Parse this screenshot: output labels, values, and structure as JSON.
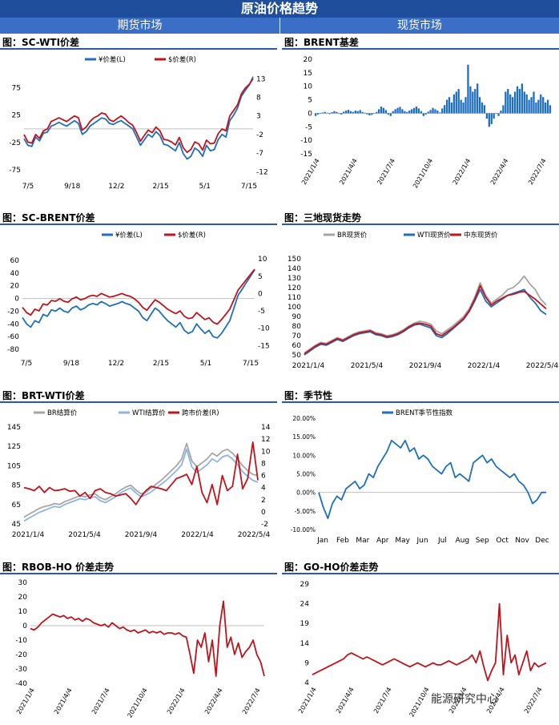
{
  "banner": "原油价格趋势",
  "columns": {
    "left": "期货市场",
    "right": "现货市场"
  },
  "watermark": "能源研究中心",
  "colors": {
    "blue": "#1f6fbf",
    "red": "#c0141c",
    "gray": "#a6a6a6",
    "lightblue": "#8db4e2"
  },
  "chart_data": [
    {
      "id": "c1",
      "type": "line",
      "title": "图：SC-WTI价差",
      "x_ticks": [
        "7/5",
        "9/18",
        "12/2",
        "2/15",
        "5/1",
        "7/15"
      ],
      "y_left": [
        -75,
        -25,
        25,
        75
      ],
      "y_left_range": [
        -85,
        105
      ],
      "y_right": [
        -12,
        -7,
        -2,
        3,
        8,
        13
      ],
      "y_right_range": [
        -13,
        15
      ],
      "series": [
        {
          "name": "¥价差(L)",
          "color": "#1f6fbf",
          "axis": "left",
          "values": [
            -18,
            -30,
            -32,
            -15,
            -22,
            -8,
            -6,
            5,
            8,
            12,
            8,
            5,
            10,
            15,
            10,
            -10,
            -5,
            5,
            10,
            15,
            20,
            18,
            10,
            8,
            12,
            15,
            10,
            5,
            0,
            -15,
            -30,
            -20,
            -10,
            -15,
            -5,
            -12,
            -28,
            -30,
            -35,
            -40,
            -25,
            -45,
            -55,
            -50,
            -35,
            -40,
            -50,
            -30,
            -40,
            -38,
            -20,
            -10,
            -15,
            15,
            25,
            38,
            60,
            70,
            80,
            95
          ]
        },
        {
          "name": "$价差(R)",
          "color": "#c0141c",
          "axis": "right",
          "values": [
            -2,
            -4,
            -4.3,
            -2,
            -3,
            -1,
            -0.5,
            1.5,
            2,
            2.5,
            2,
            1.5,
            2.3,
            3,
            2.5,
            -0.8,
            0,
            1.5,
            2.5,
            3,
            3.8,
            3.5,
            2,
            1.5,
            2.3,
            3,
            2.2,
            1.2,
            0.5,
            -1.5,
            -3.8,
            -2.2,
            -0.8,
            -1.5,
            0,
            -1,
            -3.3,
            -3.5,
            -4,
            -4.8,
            -2.8,
            -5.5,
            -6.8,
            -6,
            -4,
            -4.5,
            -6.2,
            -3.5,
            -4.5,
            -4.3,
            -1.8,
            -0.5,
            -1,
            3,
            4.5,
            6,
            9,
            10.5,
            11.5,
            13
          ]
        }
      ]
    },
    {
      "id": "c2",
      "type": "bar",
      "title": "图：BRENT基差",
      "x_ticks": [
        "2021/1/4",
        "2021/4/4",
        "2021/7/4",
        "2021/10/4",
        "2022/1/4",
        "2022/4/4",
        "2022/7/4"
      ],
      "y_left": [
        -15,
        -10,
        -5,
        0,
        5,
        10,
        15,
        20
      ],
      "y_left_range": [
        -15,
        20
      ],
      "series": [
        {
          "name": "BRENT基差",
          "color": "#1f6fbf",
          "values": [
            -1,
            -0.5,
            0,
            0.3,
            0.5,
            0.2,
            -0.3,
            0.4,
            0.8,
            0.5,
            -0.2,
            -0.5,
            0.6,
            1,
            1.3,
            0.8,
            0.5,
            1,
            0.8,
            1.2,
            0.5,
            0.2,
            -0.4,
            -0.8,
            -0.6,
            -0.2,
            0.5,
            1.5,
            2.5,
            2,
            1.2,
            -0.5,
            -1,
            0.8,
            1.5,
            2,
            2.4,
            1.5,
            0.8,
            0.5,
            1,
            1.5,
            2,
            2.5,
            1.8,
            0.8,
            -1,
            -0.5,
            0.6,
            1.2,
            2,
            1.5,
            1,
            0.3,
            1.8,
            3,
            5,
            6,
            4,
            7,
            8,
            9,
            5,
            4,
            6,
            18,
            10,
            8,
            9,
            11,
            6,
            4,
            3,
            -2,
            -5,
            -4,
            -2,
            0,
            -1,
            1,
            3,
            8,
            9,
            7,
            6,
            8,
            10,
            9,
            11,
            8,
            7,
            5,
            6,
            8,
            4,
            5,
            7,
            6,
            4,
            5,
            3
          ]
        }
      ]
    },
    {
      "id": "c3",
      "type": "line",
      "title": "图：SC-BRENT价差",
      "x_ticks": [
        "7/5",
        "9/18",
        "12/2",
        "2/15",
        "5/1",
        "7/15"
      ],
      "y_left": [
        -80,
        -60,
        -40,
        -20,
        0,
        20,
        40,
        60
      ],
      "y_left_range": [
        -85,
        65
      ],
      "y_right": [
        -15,
        -10,
        -5,
        0,
        5,
        10
      ],
      "y_right_range": [
        -17,
        10.5
      ],
      "series": [
        {
          "name": "¥价差(L)",
          "color": "#1f6fbf",
          "axis": "left",
          "values": [
            -30,
            -40,
            -45,
            -35,
            -38,
            -25,
            -28,
            -18,
            -20,
            -15,
            -20,
            -22,
            -15,
            -12,
            -18,
            -15,
            -10,
            -8,
            -10,
            -5,
            -8,
            -12,
            -10,
            -8,
            -5,
            -8,
            -10,
            -15,
            -20,
            -30,
            -35,
            -25,
            -15,
            -20,
            -28,
            -35,
            -40,
            -45,
            -38,
            -50,
            -55,
            -52,
            -40,
            -48,
            -55,
            -50,
            -60,
            -62,
            -55,
            -45,
            -35,
            -15,
            5,
            15,
            25,
            35,
            45
          ]
        },
        {
          "name": "$价差(R)",
          "color": "#c0141c",
          "axis": "right",
          "values": [
            -4,
            -5.5,
            -6.2,
            -4.5,
            -5,
            -3,
            -3.3,
            -2,
            -2.2,
            -1.5,
            -2.2,
            -2.5,
            -1.5,
            -1,
            -1.8,
            -1.5,
            -0.8,
            -0.5,
            -0.8,
            0,
            -0.5,
            -1,
            -0.8,
            -0.4,
            0,
            -0.5,
            -0.8,
            -1.5,
            -2.5,
            -4,
            -4.8,
            -3.3,
            -1.8,
            -2.5,
            -3.5,
            -4.5,
            -5.2,
            -5.8,
            -5,
            -6.5,
            -7.2,
            -7,
            -5.5,
            -6.5,
            -7.5,
            -7,
            -8.3,
            -8.8,
            -7.5,
            -6,
            -4.5,
            -1.8,
            1,
            2.5,
            4,
            5.5,
            7
          ]
        }
      ]
    },
    {
      "id": "c4",
      "type": "line",
      "title": "图：三地现货走势",
      "x_ticks": [
        "2021/1/4",
        "2021/5/4",
        "2021/9/4",
        "2022/1/4",
        "2022/5/4"
      ],
      "y_left": [
        50,
        60,
        70,
        80,
        90,
        100,
        110,
        120,
        130,
        140,
        150
      ],
      "y_left_range": [
        50,
        150
      ],
      "series": [
        {
          "name": "BR现货价",
          "color": "#a6a6a6",
          "values": [
            52,
            56,
            60,
            63,
            62,
            65,
            68,
            66,
            69,
            72,
            74,
            75,
            76,
            73,
            72,
            70,
            71,
            73,
            76,
            80,
            83,
            85,
            84,
            82,
            75,
            72,
            76,
            80,
            85,
            90,
            98,
            110,
            125,
            112,
            104,
            108,
            112,
            118,
            120,
            125,
            132,
            124,
            118,
            108,
            102
          ]
        },
        {
          "name": "WTI现货价",
          "color": "#1f6fbf",
          "values": [
            50,
            54,
            58,
            61,
            60,
            63,
            66,
            64,
            67,
            70,
            72,
            73,
            74,
            71,
            70,
            68,
            69,
            71,
            74,
            78,
            81,
            82,
            80,
            78,
            70,
            68,
            72,
            77,
            82,
            87,
            95,
            106,
            118,
            106,
            100,
            104,
            108,
            112,
            114,
            116,
            118,
            110,
            104,
            96,
            92
          ]
        },
        {
          "name": "中东现货价",
          "color": "#c0141c",
          "values": [
            51,
            55,
            59,
            62,
            61,
            64,
            67,
            65,
            68,
            71,
            73,
            74,
            75,
            72,
            71,
            69,
            70,
            72,
            75,
            79,
            82,
            83,
            82,
            80,
            72,
            70,
            74,
            78,
            83,
            88,
            96,
            108,
            122,
            110,
            102,
            106,
            109,
            112,
            113,
            115,
            116,
            112,
            108,
            103,
            98
          ]
        }
      ]
    },
    {
      "id": "c5",
      "type": "line",
      "title": "图：BRT-WTI价差",
      "x_ticks": [
        "2021/1/4",
        "2021/5/4",
        "2021/9/4",
        "2022/1/4",
        "2022/5/4"
      ],
      "y_left": [
        45,
        65,
        85,
        105,
        125,
        145
      ],
      "y_left_range": [
        45,
        145
      ],
      "y_right": [
        -2,
        0,
        2,
        4,
        6,
        8,
        10,
        12,
        14
      ],
      "y_right_range": [
        -2,
        14
      ],
      "series": [
        {
          "name": "BR结算价",
          "color": "#a6a6a6",
          "axis": "left",
          "values": [
            52,
            55,
            58,
            61,
            63,
            64,
            66,
            65,
            68,
            70,
            72,
            74,
            73,
            75,
            76,
            72,
            70,
            73,
            76,
            80,
            83,
            85,
            80,
            76,
            78,
            82,
            86,
            90,
            95,
            100,
            105,
            112,
            128,
            110,
            104,
            108,
            112,
            118,
            115,
            120,
            122,
            118,
            112,
            105,
            100,
            96,
            95
          ]
        },
        {
          "name": "WTI结算价",
          "color": "#8db4e2",
          "axis": "left",
          "values": [
            48,
            51,
            54,
            57,
            59,
            61,
            63,
            62,
            65,
            67,
            69,
            71,
            70,
            72,
            73,
            69,
            67,
            70,
            73,
            77,
            80,
            82,
            77,
            73,
            75,
            78,
            82,
            86,
            90,
            95,
            100,
            106,
            122,
            104,
            98,
            102,
            106,
            112,
            109,
            114,
            116,
            112,
            106,
            99,
            94,
            90,
            88
          ]
        },
        {
          "name": "跨市价差(R)",
          "color": "#c0141c",
          "axis": "right",
          "values": [
            4,
            3.8,
            3.5,
            4.2,
            3.2,
            4,
            3.5,
            3.6,
            3.8,
            3.4,
            3.5,
            2.6,
            3.2,
            2.2,
            3.5,
            3.8,
            3.2,
            3,
            2.6,
            2.8,
            3,
            2.2,
            1.2,
            2.5,
            3.5,
            4.2,
            4,
            3.8,
            3.5,
            4.5,
            5.5,
            5.8,
            6.2,
            4.5,
            7.5,
            3.2,
            1.5,
            4.5,
            1.2,
            6,
            3.5,
            4.2,
            9.5,
            3.8,
            5.5,
            11.5,
            5.2
          ]
        }
      ]
    },
    {
      "id": "c6",
      "type": "line",
      "title": "图：季节性",
      "x_ticks": [
        "Jan",
        "Feb",
        "Mar",
        "Apr",
        "May",
        "Jun",
        "Jul",
        "Aug",
        "Sep",
        "Oct",
        "Nov",
        "Dec"
      ],
      "y_left": [
        "20.00%",
        "15.00%",
        "10.00%",
        "5.00%",
        "0.00%",
        "-5.00%",
        "-10.00%"
      ],
      "y_left_range": [
        -10,
        20
      ],
      "series": [
        {
          "name": "BRENT季节性指数",
          "color": "#1f6fbf",
          "values": [
            0,
            -4,
            -7,
            -3,
            -1,
            -2,
            1,
            2,
            3,
            1,
            2,
            5,
            4,
            7,
            9,
            11,
            14,
            13,
            12,
            14,
            11,
            12,
            9,
            10,
            9,
            7,
            6,
            5,
            7,
            8,
            4,
            5,
            4,
            3,
            8,
            9,
            10,
            8,
            9,
            7,
            6,
            5,
            4,
            5,
            3,
            2,
            0,
            -3,
            -2,
            0,
            0
          ]
        }
      ]
    },
    {
      "id": "c7",
      "type": "line",
      "title": "图：RBOB-HO 价差走势",
      "x_ticks": [
        "2021/1/4",
        "2021/4/4",
        "2021/7/4",
        "2021/10/4",
        "2022/1/4",
        "2022/4/4",
        "2022/7/4"
      ],
      "y_left": [
        -40,
        -30,
        -20,
        -10,
        0,
        10,
        20,
        30
      ],
      "y_left_range": [
        -40,
        30
      ],
      "series": [
        {
          "name": "RBOB-HO价差",
          "color": "#c0141c",
          "values": [
            -2,
            -3,
            -1,
            2,
            4,
            6,
            8,
            7,
            6,
            7,
            5,
            6,
            4,
            5,
            3,
            5,
            4,
            2,
            1,
            0,
            1,
            -1,
            2,
            0,
            -2,
            -1,
            -3,
            -4,
            -3,
            -5,
            -4,
            -3,
            -5,
            -4,
            -5,
            -4,
            -6,
            -5,
            -5,
            -6,
            -5,
            -7,
            -8,
            -20,
            -33,
            -10,
            -15,
            -5,
            -25,
            -10,
            -35,
            0,
            17,
            -15,
            -8,
            -20,
            -12,
            -22,
            -18,
            -15,
            -10,
            -20,
            -25,
            -35
          ]
        }
      ]
    },
    {
      "id": "c8",
      "type": "line",
      "title": "图：GO-HO价差走势",
      "x_ticks": [
        "2021/1/4",
        "2021/4/4",
        "2021/7/4",
        "2021/10/4",
        "2022/1/4",
        "2022/4/4",
        "2022/7/4"
      ],
      "y_left": [
        4,
        9,
        14,
        19,
        24,
        29
      ],
      "y_left_range": [
        4,
        29
      ],
      "series": [
        {
          "name": "GO-HO价差",
          "color": "#c0141c",
          "values": [
            6,
            6.5,
            7,
            7.5,
            8,
            8.5,
            9,
            9.5,
            10,
            11,
            11.5,
            11,
            10.5,
            10,
            10.5,
            10,
            9.5,
            9,
            8.5,
            9,
            9.5,
            10,
            9.5,
            9,
            8.5,
            8,
            8.5,
            9,
            8.5,
            8,
            8.5,
            9,
            8.5,
            8.5,
            9,
            9.5,
            9,
            8.5,
            9,
            9.5,
            10,
            11,
            9,
            12,
            8,
            4.5,
            7,
            9,
            24,
            6,
            16,
            9,
            11,
            6,
            9,
            12,
            7,
            9,
            8,
            8.5,
            9
          ]
        }
      ]
    }
  ]
}
